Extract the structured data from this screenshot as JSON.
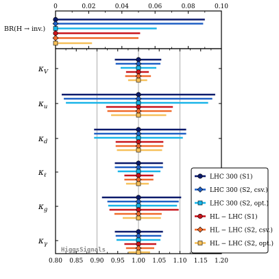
{
  "chart_data": {
    "type": "errorbar",
    "top_panel": {
      "ylabel": "BR(H → inv.)",
      "xlim": [
        0,
        0.1
      ],
      "ticks": [
        "0",
        "0.02",
        "0.04",
        "0.06",
        "0.08",
        "0.10"
      ],
      "tick_values": [
        0,
        0.02,
        0.04,
        0.06,
        0.08,
        0.1
      ],
      "values": [
        {
          "series": "LHC 300 (S1)",
          "center": 0,
          "lo": 0,
          "hi": 0.09
        },
        {
          "series": "LHC 300 (S2, csv.)",
          "center": 0,
          "lo": 0,
          "hi": 0.089
        },
        {
          "series": "LHC 300 (S2, opt.)",
          "center": 0,
          "lo": 0,
          "hi": 0.061
        },
        {
          "series": "HL - LHC (S1)",
          "center": 0,
          "lo": 0,
          "hi": 0.051
        },
        {
          "series": "HL - LHC (S2, csv.)",
          "center": 0,
          "lo": 0,
          "hi": 0.05
        },
        {
          "series": "HL - LHC (S2, opt.)",
          "center": 0,
          "lo": 0,
          "hi": 0.022
        }
      ]
    },
    "main_panel": {
      "xlim": [
        0.8,
        1.2
      ],
      "ticks": [
        "0.80",
        "0.85",
        "0.90",
        "0.95",
        "1.00",
        "1.05",
        "1.10",
        "1.15",
        "1.20"
      ],
      "tick_values": [
        0.8,
        0.85,
        0.9,
        0.95,
        1.0,
        1.05,
        1.1,
        1.15,
        1.2
      ],
      "vlines": [
        0.9,
        1.0,
        1.1
      ],
      "rows": [
        {
          "label": "κV",
          "intervals": [
            [
              0.943,
              1.055
            ],
            [
              0.945,
              1.053
            ],
            [
              0.957,
              1.043
            ],
            [
              0.97,
              1.025
            ],
            [
              0.968,
              1.03
            ],
            [
              0.975,
              1.021
            ]
          ]
        },
        {
          "label": "κu",
          "intervals": [
            [
              0.815,
              1.185
            ],
            [
              0.82,
              1.178
            ],
            [
              0.825,
              1.168
            ],
            [
              0.922,
              1.083
            ],
            [
              0.925,
              1.08
            ],
            [
              0.934,
              1.067
            ]
          ]
        },
        {
          "label": "κd",
          "intervals": [
            [
              0.893,
              1.115
            ],
            [
              0.893,
              1.115
            ],
            [
              0.893,
              1.107
            ],
            [
              0.945,
              1.06
            ],
            [
              0.945,
              1.06
            ],
            [
              0.948,
              1.057
            ]
          ]
        },
        {
          "label": "κℓ",
          "intervals": [
            [
              0.943,
              1.059
            ],
            [
              0.943,
              1.059
            ],
            [
              0.95,
              1.053
            ],
            [
              0.966,
              1.036
            ],
            [
              0.966,
              1.036
            ],
            [
              0.97,
              1.025
            ]
          ]
        },
        {
          "label": "κg",
          "intervals": [
            [
              0.912,
              1.103
            ],
            [
              0.925,
              1.097
            ],
            [
              0.927,
              1.093
            ],
            [
              0.93,
              1.097
            ],
            [
              0.942,
              1.056
            ],
            [
              0.962,
              1.054
            ]
          ]
        },
        {
          "label": "κγ",
          "intervals": [
            [
              0.943,
              1.059
            ],
            [
              0.945,
              1.055
            ],
            [
              0.947,
              1.053
            ],
            [
              0.966,
              1.043
            ],
            [
              0.97,
              1.038
            ],
            [
              0.976,
              1.028
            ]
          ]
        }
      ],
      "center": 1.0
    },
    "series": [
      {
        "name": "LHC 300 (S1)",
        "color": "#0b1a6b",
        "marker": "circle"
      },
      {
        "name": "LHC 300 (S2, csv.)",
        "color": "#1f5fc4",
        "marker": "diamond"
      },
      {
        "name": "LHC 300 (S2, opt.)",
        "color": "#18b4e8",
        "marker": "square"
      },
      {
        "name": "HL − LHC (S1)",
        "color": "#c8141c",
        "marker": "circle"
      },
      {
        "name": "HL − LHC (S2, csv.)",
        "color": "#f06a2a",
        "marker": "diamond"
      },
      {
        "name": "HL − LHC (S2, opt.)",
        "color": "#f6c05a",
        "marker": "square"
      }
    ],
    "legend_placement": "bottom-right",
    "watermark": "HiggsSignals"
  }
}
